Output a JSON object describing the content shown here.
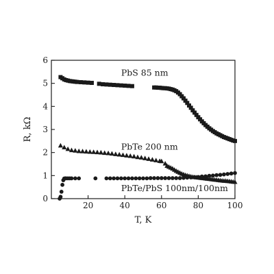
{
  "chart_data": {
    "type": "scatter",
    "title": "",
    "xlabel": "T, K",
    "ylabel": "R, kΩ",
    "xlim": [
      0,
      100
    ],
    "ylim": [
      0,
      6
    ],
    "xticks": [
      20,
      40,
      60,
      80,
      100
    ],
    "yticks": [
      0,
      1,
      2,
      3,
      4,
      5,
      6
    ],
    "grid": false,
    "legend": "none",
    "series": [
      {
        "name": "PbS 85 nm",
        "marker": "square",
        "color": "#1a1a1a",
        "x": [
          5,
          6,
          7,
          8,
          9,
          10,
          11,
          12,
          13,
          14,
          16,
          18,
          20,
          22,
          26,
          28,
          30,
          32,
          34,
          36,
          38,
          40,
          42,
          44,
          56,
          57,
          58,
          59,
          60,
          61,
          62,
          63,
          64,
          65,
          66,
          67,
          68,
          69,
          70,
          71,
          72,
          73,
          74,
          75,
          76,
          77,
          78,
          79,
          80,
          81,
          82,
          83,
          84,
          85,
          86,
          87,
          88,
          89,
          90,
          91,
          92,
          93,
          94,
          95,
          96,
          97,
          98,
          99,
          100
        ],
        "y": [
          5.27,
          5.22,
          5.17,
          5.14,
          5.12,
          5.1,
          5.09,
          5.08,
          5.07,
          5.06,
          5.05,
          5.04,
          5.03,
          5.02,
          4.98,
          4.96,
          4.95,
          4.94,
          4.93,
          4.92,
          4.91,
          4.9,
          4.89,
          4.88,
          4.82,
          4.82,
          4.81,
          4.81,
          4.8,
          4.79,
          4.79,
          4.78,
          4.77,
          4.75,
          4.73,
          4.7,
          4.66,
          4.6,
          4.53,
          4.44,
          4.35,
          4.25,
          4.15,
          4.04,
          3.94,
          3.83,
          3.73,
          3.63,
          3.53,
          3.44,
          3.35,
          3.27,
          3.19,
          3.12,
          3.05,
          2.99,
          2.93,
          2.88,
          2.83,
          2.79,
          2.75,
          2.71,
          2.67,
          2.64,
          2.61,
          2.58,
          2.55,
          2.52,
          2.5
        ]
      },
      {
        "name": "PbTe 200 nm",
        "marker": "triangle",
        "color": "#1a1a1a",
        "x": [
          5,
          7,
          9,
          11,
          13,
          15,
          17,
          19,
          21,
          23,
          25,
          27,
          29,
          31,
          33,
          35,
          37,
          39,
          41,
          43,
          45,
          47,
          49,
          51,
          53,
          55,
          57,
          59,
          60,
          62,
          63,
          64,
          65,
          66,
          67,
          68,
          69,
          70,
          71,
          72,
          73,
          74,
          75,
          76,
          77,
          78,
          79,
          80,
          81,
          82,
          83,
          84,
          85,
          86,
          87,
          88,
          89,
          90,
          91,
          92,
          93,
          94,
          95,
          96,
          97,
          98,
          99,
          100
        ],
        "y": [
          2.3,
          2.22,
          2.15,
          2.1,
          2.08,
          2.06,
          2.05,
          2.04,
          2.03,
          2.02,
          2.01,
          2.0,
          1.98,
          1.97,
          1.95,
          1.93,
          1.91,
          1.89,
          1.87,
          1.85,
          1.83,
          1.8,
          1.78,
          1.75,
          1.72,
          1.69,
          1.66,
          1.63,
          1.62,
          1.52,
          1.42,
          1.38,
          1.34,
          1.3,
          1.25,
          1.2,
          1.16,
          1.12,
          1.08,
          1.05,
          1.02,
          1.0,
          0.98,
          0.96,
          0.94,
          0.93,
          0.92,
          0.91,
          0.9,
          0.89,
          0.88,
          0.87,
          0.86,
          0.85,
          0.84,
          0.83,
          0.82,
          0.81,
          0.8,
          0.79,
          0.78,
          0.77,
          0.77,
          0.76,
          0.75,
          0.74,
          0.73,
          0.72
        ]
      },
      {
        "name": "PbTe/PbS 100nm/100nm",
        "marker": "circle",
        "color": "#1a1a1a",
        "x": [
          4.5,
          5,
          5.5,
          6,
          6.5,
          7,
          7.5,
          8,
          9,
          10,
          11,
          13,
          15,
          24,
          30,
          32,
          34,
          36,
          38,
          40,
          42,
          44,
          46,
          48,
          50,
          52,
          54,
          56,
          58,
          60,
          62,
          64,
          66,
          68,
          70,
          72,
          74,
          76,
          78,
          80,
          82,
          84,
          86,
          88,
          90,
          92,
          94,
          96,
          98,
          100
        ],
        "y": [
          0.0,
          0.08,
          0.3,
          0.6,
          0.8,
          0.87,
          0.88,
          0.88,
          0.88,
          0.88,
          0.88,
          0.88,
          0.88,
          0.88,
          0.88,
          0.88,
          0.88,
          0.88,
          0.88,
          0.88,
          0.88,
          0.88,
          0.88,
          0.88,
          0.88,
          0.88,
          0.89,
          0.89,
          0.89,
          0.89,
          0.89,
          0.89,
          0.89,
          0.89,
          0.89,
          0.9,
          0.91,
          0.92,
          0.93,
          0.94,
          0.96,
          0.97,
          0.99,
          1.0,
          1.02,
          1.03,
          1.05,
          1.07,
          1.09,
          1.11
        ]
      }
    ],
    "annotations": [
      {
        "text": "PbS 85 nm",
        "x": 38,
        "y": 5.45
      },
      {
        "text": "PbTe 200 nm",
        "x": 38,
        "y": 2.25
      },
      {
        "text": "PbTe/PbS 100nm/100nm",
        "x": 38,
        "y": 0.45
      }
    ]
  }
}
